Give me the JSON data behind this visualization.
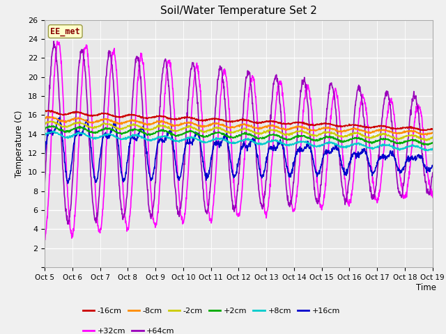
{
  "title": "Soil/Water Temperature Set 2",
  "xlabel": "Time",
  "ylabel": "Temperature (C)",
  "annotation": "EE_met",
  "ylim": [
    0,
    26
  ],
  "yticks": [
    0,
    2,
    4,
    6,
    8,
    10,
    12,
    14,
    16,
    18,
    20,
    22,
    24,
    26
  ],
  "n_days": 14,
  "x_labels": [
    "Oct 5",
    "Oct 6",
    "Oct 7",
    "Oct 8",
    "Oct 9",
    "Oct 10",
    "Oct 11",
    "Oct 12",
    "Oct 13",
    "Oct 14",
    "Oct 15",
    "Oct 16",
    "Oct 17",
    "Oct 18",
    "Oct 19"
  ],
  "series": {
    "-16cm": {
      "color": "#cc0000",
      "lw": 1.2
    },
    "-8cm": {
      "color": "#ff8c00",
      "lw": 1.2
    },
    "-2cm": {
      "color": "#cccc00",
      "lw": 1.2
    },
    "+2cm": {
      "color": "#00aa00",
      "lw": 1.2
    },
    "+8cm": {
      "color": "#00cccc",
      "lw": 1.2
    },
    "+16cm": {
      "color": "#0000cc",
      "lw": 1.2
    },
    "+32cm": {
      "color": "#ff00ff",
      "lw": 1.2
    },
    "+64cm": {
      "color": "#9900bb",
      "lw": 1.2
    }
  },
  "fig_bg": "#f0f0f0",
  "ax_bg": "#e8e8e8",
  "grid_color": "#ffffff",
  "legend_ncol_row1": 6,
  "legend_ncol_row2": 2
}
